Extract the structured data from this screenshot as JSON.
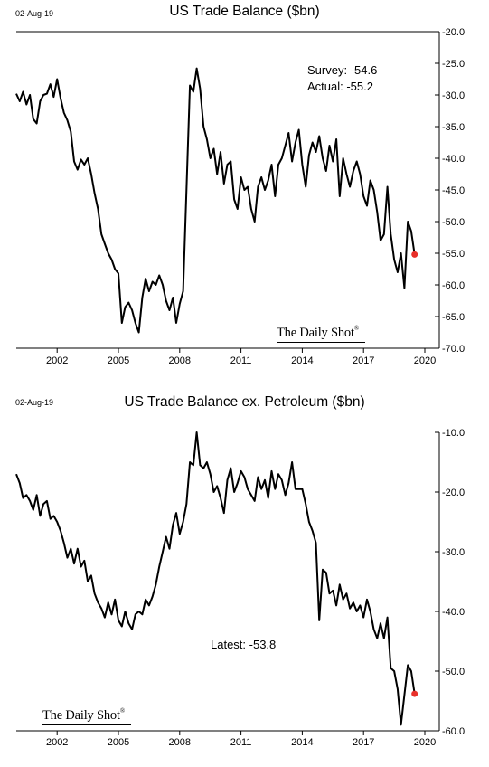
{
  "chart_data": [
    {
      "type": "line",
      "date": "02-Aug-19",
      "title": "US Trade Balance ($bn)",
      "x_ticks": [
        "2002",
        "2005",
        "2008",
        "2011",
        "2014",
        "2017",
        "2020"
      ],
      "y_ticks": [
        "-20.0",
        "-25.0",
        "-30.0",
        "-35.0",
        "-40.0",
        "-45.0",
        "-50.0",
        "-55.0",
        "-60.0",
        "-65.0",
        "-70.0"
      ],
      "xlim": [
        2000.0,
        2020.0
      ],
      "ylim": [
        -70,
        -20
      ],
      "annotations": [
        "Survey: -54.6",
        "Actual:  -55.2"
      ],
      "brand": "The Daily Shot",
      "brand_mark": "®",
      "series": [
        {
          "color": "#000000",
          "x": [
            2000.0,
            2000.17,
            2000.33,
            2000.5,
            2000.67,
            2000.83,
            2001.0,
            2001.17,
            2001.33,
            2001.5,
            2001.67,
            2001.83,
            2002.0,
            2002.17,
            2002.33,
            2002.5,
            2002.67,
            2002.83,
            2003.0,
            2003.17,
            2003.33,
            2003.5,
            2003.67,
            2003.83,
            2004.0,
            2004.17,
            2004.33,
            2004.5,
            2004.67,
            2004.83,
            2005.0,
            2005.17,
            2005.33,
            2005.5,
            2005.67,
            2005.83,
            2006.0,
            2006.17,
            2006.33,
            2006.5,
            2006.67,
            2006.83,
            2007.0,
            2007.17,
            2007.33,
            2007.5,
            2007.67,
            2007.83,
            2008.0,
            2008.17,
            2008.33,
            2008.5,
            2008.67,
            2008.83,
            2009.0,
            2009.17,
            2009.33,
            2009.5,
            2009.67,
            2009.83,
            2010.0,
            2010.17,
            2010.33,
            2010.5,
            2010.67,
            2010.83,
            2011.0,
            2011.17,
            2011.33,
            2011.5,
            2011.67,
            2011.83,
            2012.0,
            2012.17,
            2012.33,
            2012.5,
            2012.67,
            2012.83,
            2013.0,
            2013.17,
            2013.33,
            2013.5,
            2013.67,
            2013.83,
            2014.0,
            2014.17,
            2014.33,
            2014.5,
            2014.67,
            2014.83,
            2015.0,
            2015.17,
            2015.33,
            2015.5,
            2015.67,
            2015.83,
            2016.0,
            2016.17,
            2016.33,
            2016.5,
            2016.67,
            2016.83,
            2017.0,
            2017.17,
            2017.33,
            2017.5,
            2017.67,
            2017.83,
            2018.0,
            2018.17,
            2018.33,
            2018.5,
            2018.67,
            2018.83,
            2019.0,
            2019.17,
            2019.33,
            2019.5
          ],
          "values": [
            -29.8,
            -31.0,
            -29.5,
            -31.5,
            -30.0,
            -33.8,
            -34.5,
            -31.0,
            -30.0,
            -29.8,
            -28.3,
            -30.3,
            -27.5,
            -30.5,
            -32.8,
            -34.0,
            -35.8,
            -40.5,
            -41.8,
            -40.2,
            -41.0,
            -40.0,
            -42.5,
            -45.5,
            -48.0,
            -52.0,
            -53.5,
            -55.0,
            -56.0,
            -57.5,
            -58.2,
            -66.0,
            -63.5,
            -62.8,
            -64.0,
            -66.0,
            -67.5,
            -62.0,
            -59.0,
            -61.0,
            -59.5,
            -60.0,
            -58.5,
            -60.0,
            -62.5,
            -64.0,
            -62.0,
            -66.0,
            -63.0,
            -61.0,
            -45.0,
            -28.5,
            -29.5,
            -25.8,
            -29.0,
            -35.0,
            -37.0,
            -40.0,
            -38.5,
            -42.5,
            -39.0,
            -44.0,
            -41.0,
            -40.5,
            -46.5,
            -48.0,
            -43.0,
            -45.0,
            -44.5,
            -48.0,
            -50.0,
            -44.5,
            -43.0,
            -45.0,
            -43.5,
            -41.0,
            -46.0,
            -41.0,
            -40.0,
            -38.0,
            -36.0,
            -40.5,
            -37.5,
            -35.5,
            -41.0,
            -44.5,
            -39.5,
            -37.5,
            -39.0,
            -36.5,
            -40.0,
            -42.0,
            -38.0,
            -40.5,
            -37.0,
            -46.0,
            -40.0,
            -42.5,
            -44.5,
            -42.0,
            -40.5,
            -42.5,
            -46.0,
            -47.5,
            -43.5,
            -45.0,
            -48.5,
            -53.0,
            -52.0,
            -44.5,
            -52.0,
            -56.0,
            -58.0,
            -55.0,
            -60.5,
            -50.0,
            -51.5,
            -55.2
          ]
        }
      ],
      "highlight_point": {
        "x": 2019.5,
        "y": -55.2,
        "color": "#e8302a"
      }
    },
    {
      "type": "line",
      "date": "02-Aug-19",
      "title": "US Trade Balance ex. Petroleum ($bn)",
      "x_ticks": [
        "2002",
        "2005",
        "2008",
        "2011",
        "2014",
        "2017",
        "2020"
      ],
      "y_ticks": [
        "-10.0",
        "-20.0",
        "-30.0",
        "-40.0",
        "-50.0",
        "-60.0"
      ],
      "xlim": [
        2000.0,
        2020.0
      ],
      "ylim": [
        -60,
        -10
      ],
      "annotations": [
        "Latest:  -53.8"
      ],
      "brand": "The Daily Shot",
      "brand_mark": "®",
      "series": [
        {
          "color": "#000000",
          "x": [
            2000.0,
            2000.17,
            2000.33,
            2000.5,
            2000.67,
            2000.83,
            2001.0,
            2001.17,
            2001.33,
            2001.5,
            2001.67,
            2001.83,
            2002.0,
            2002.17,
            2002.33,
            2002.5,
            2002.67,
            2002.83,
            2003.0,
            2003.17,
            2003.33,
            2003.5,
            2003.67,
            2003.83,
            2004.0,
            2004.17,
            2004.33,
            2004.5,
            2004.67,
            2004.83,
            2005.0,
            2005.17,
            2005.33,
            2005.5,
            2005.67,
            2005.83,
            2006.0,
            2006.17,
            2006.33,
            2006.5,
            2006.67,
            2006.83,
            2007.0,
            2007.17,
            2007.33,
            2007.5,
            2007.67,
            2007.83,
            2008.0,
            2008.17,
            2008.33,
            2008.5,
            2008.67,
            2008.83,
            2009.0,
            2009.17,
            2009.33,
            2009.5,
            2009.67,
            2009.83,
            2010.0,
            2010.17,
            2010.33,
            2010.5,
            2010.67,
            2010.83,
            2011.0,
            2011.17,
            2011.33,
            2011.5,
            2011.67,
            2011.83,
            2012.0,
            2012.17,
            2012.33,
            2012.5,
            2012.67,
            2012.83,
            2013.0,
            2013.17,
            2013.33,
            2013.5,
            2013.67,
            2013.83,
            2014.0,
            2014.17,
            2014.33,
            2014.5,
            2014.67,
            2014.83,
            2015.0,
            2015.17,
            2015.33,
            2015.5,
            2015.67,
            2015.83,
            2016.0,
            2016.17,
            2016.33,
            2016.5,
            2016.67,
            2016.83,
            2017.0,
            2017.17,
            2017.33,
            2017.5,
            2017.67,
            2017.83,
            2018.0,
            2018.17,
            2018.33,
            2018.5,
            2018.67,
            2018.83,
            2019.0,
            2019.17,
            2019.33,
            2019.5
          ],
          "values": [
            -17.0,
            -18.5,
            -21.0,
            -20.5,
            -21.5,
            -23.0,
            -20.5,
            -24.0,
            -22.0,
            -21.5,
            -24.5,
            -24.0,
            -25.0,
            -26.5,
            -28.5,
            -31.0,
            -29.5,
            -32.0,
            -29.5,
            -32.5,
            -31.5,
            -35.0,
            -34.0,
            -37.0,
            -38.5,
            -39.5,
            -41.0,
            -38.5,
            -40.5,
            -38.0,
            -41.5,
            -42.5,
            -40.0,
            -42.0,
            -43.0,
            -40.5,
            -40.0,
            -40.5,
            -38.0,
            -39.0,
            -37.5,
            -35.5,
            -32.5,
            -30.0,
            -27.5,
            -29.5,
            -25.5,
            -23.5,
            -27.0,
            -25.0,
            -22.0,
            -15.0,
            -15.5,
            -10.0,
            -15.5,
            -16.0,
            -15.0,
            -17.0,
            -20.0,
            -19.0,
            -21.0,
            -23.5,
            -18.0,
            -16.0,
            -20.0,
            -18.5,
            -16.5,
            -17.5,
            -19.5,
            -20.5,
            -21.5,
            -17.5,
            -19.5,
            -18.0,
            -21.0,
            -16.5,
            -19.5,
            -17.0,
            -18.0,
            -20.5,
            -18.5,
            -15.0,
            -19.5,
            -19.5,
            -19.5,
            -22.0,
            -25.0,
            -26.5,
            -28.5,
            -41.5,
            -33.0,
            -33.5,
            -37.0,
            -36.5,
            -39.0,
            -35.5,
            -38.0,
            -37.0,
            -39.5,
            -38.5,
            -40.0,
            -39.0,
            -41.0,
            -38.0,
            -40.0,
            -43.0,
            -44.5,
            -42.0,
            -44.5,
            -41.0,
            -49.5,
            -50.0,
            -53.0,
            -59.0,
            -54.0,
            -49.0,
            -50.0,
            -53.8
          ]
        }
      ],
      "highlight_point": {
        "x": 2019.5,
        "y": -53.8,
        "color": "#e8302a"
      }
    }
  ]
}
